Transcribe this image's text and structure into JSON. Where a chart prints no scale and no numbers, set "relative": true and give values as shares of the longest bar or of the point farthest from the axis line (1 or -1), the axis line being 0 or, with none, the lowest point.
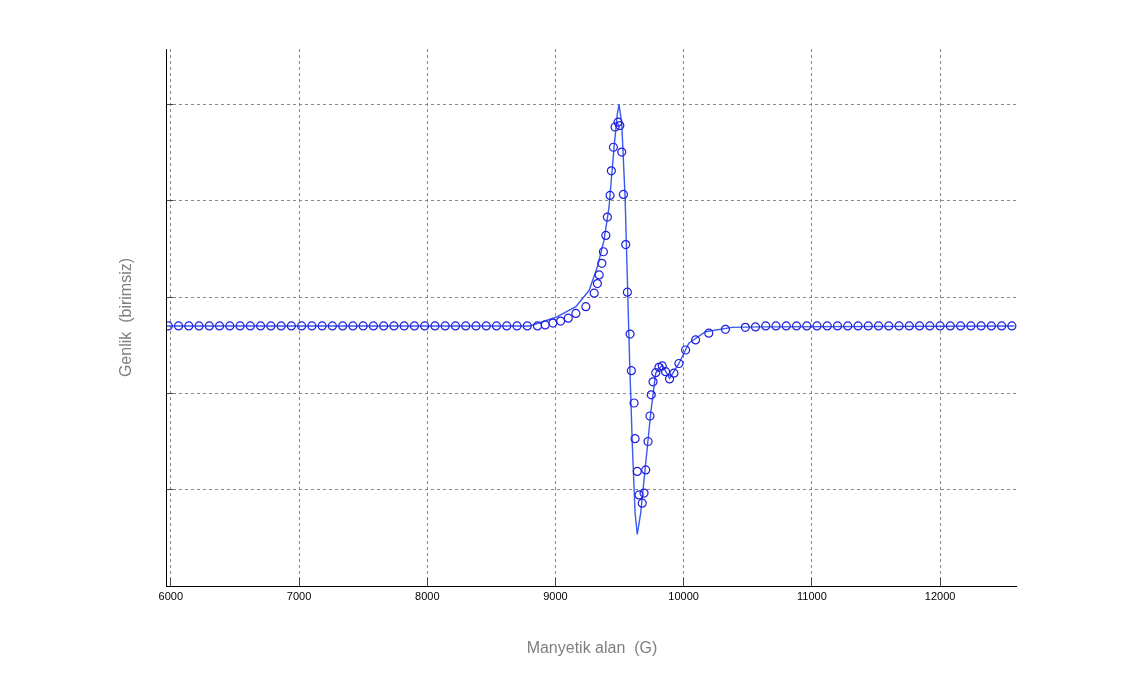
{
  "chart_data": {
    "type": "line",
    "relative": true,
    "xlabel": "Manyetik alan  (G)",
    "ylabel": "Genlik  (birimsiz)",
    "xlim": [
      5970,
      12600
    ],
    "xticks": [
      6000,
      7000,
      8000,
      9000,
      10000,
      11000,
      12000
    ],
    "grid": true,
    "series": [
      {
        "color": "#3a5af0",
        "line_style": "solid",
        "marker": "none",
        "x": [
          5970,
          8800,
          9004,
          9159,
          9263,
          9327,
          9379,
          9418,
          9457,
          9483,
          9496,
          9517,
          9543,
          9561,
          9579,
          9600,
          9621,
          9638,
          9665,
          9704,
          9743,
          9782,
          9833,
          9890,
          9963,
          10040,
          10170,
          10377,
          10585,
          12580
        ],
        "values": [
          0.54,
          0.54,
          0.558,
          0.58,
          0.614,
          0.663,
          0.718,
          0.787,
          0.911,
          0.981,
          1.0,
          0.96,
          0.808,
          0.635,
          0.462,
          0.29,
          0.152,
          0.107,
          0.152,
          0.255,
          0.359,
          0.442,
          0.459,
          0.431,
          0.462,
          0.504,
          0.528,
          0.537,
          0.538,
          0.54
        ]
      },
      {
        "type": "scatter",
        "color": "#2020dd",
        "marker": "circle",
        "x": [
          5980,
          6060,
          6140,
          6220,
          6300,
          6380,
          6460,
          6540,
          6620,
          6700,
          6780,
          6860,
          6940,
          7020,
          7100,
          7180,
          7260,
          7340,
          7420,
          7500,
          7580,
          7660,
          7740,
          7820,
          7900,
          7980,
          8060,
          8140,
          8220,
          8300,
          8380,
          8460,
          8540,
          8620,
          8700,
          8780,
          8860,
          8920,
          8980,
          9040,
          9100,
          9159,
          9237,
          9302,
          9327,
          9341,
          9362,
          9374,
          9393,
          9405,
          9426,
          9436,
          9452,
          9465,
          9488,
          9502,
          9517,
          9530,
          9548,
          9561,
          9582,
          9592,
          9613,
          9621,
          9638,
          9652,
          9677,
          9691,
          9704,
          9722,
          9737,
          9747,
          9761,
          9782,
          9807,
          9833,
          9859,
          9890,
          9924,
          9963,
          10015,
          10093,
          10196,
          10326,
          10481,
          10560,
          10640,
          10720,
          10800,
          10880,
          10960,
          11040,
          11120,
          11200,
          11280,
          11360,
          11440,
          11520,
          11600,
          11680,
          11760,
          11840,
          11920,
          12000,
          12080,
          12160,
          12240,
          12320,
          12400,
          12480,
          12560
        ],
        "values": [
          0.54,
          0.54,
          0.54,
          0.54,
          0.54,
          0.54,
          0.54,
          0.54,
          0.54,
          0.54,
          0.54,
          0.54,
          0.54,
          0.54,
          0.54,
          0.54,
          0.54,
          0.54,
          0.54,
          0.54,
          0.54,
          0.54,
          0.54,
          0.54,
          0.54,
          0.54,
          0.54,
          0.54,
          0.54,
          0.54,
          0.54,
          0.54,
          0.54,
          0.54,
          0.54,
          0.54,
          0.54,
          0.542,
          0.546,
          0.55,
          0.556,
          0.566,
          0.58,
          0.608,
          0.628,
          0.646,
          0.67,
          0.694,
          0.728,
          0.766,
          0.811,
          0.862,
          0.911,
          0.953,
          0.963,
          0.956,
          0.901,
          0.813,
          0.709,
          0.61,
          0.523,
          0.447,
          0.38,
          0.306,
          0.238,
          0.189,
          0.172,
          0.193,
          0.241,
          0.3,
          0.353,
          0.397,
          0.424,
          0.443,
          0.454,
          0.457,
          0.445,
          0.43,
          0.442,
          0.462,
          0.49,
          0.511,
          0.525,
          0.533,
          0.537,
          0.538,
          0.54,
          0.54,
          0.54,
          0.54,
          0.54,
          0.54,
          0.54,
          0.54,
          0.54,
          0.54,
          0.54,
          0.54,
          0.54,
          0.54,
          0.54,
          0.54,
          0.54,
          0.54,
          0.54,
          0.54,
          0.54,
          0.54,
          0.54,
          0.54,
          0.54
        ]
      }
    ]
  }
}
